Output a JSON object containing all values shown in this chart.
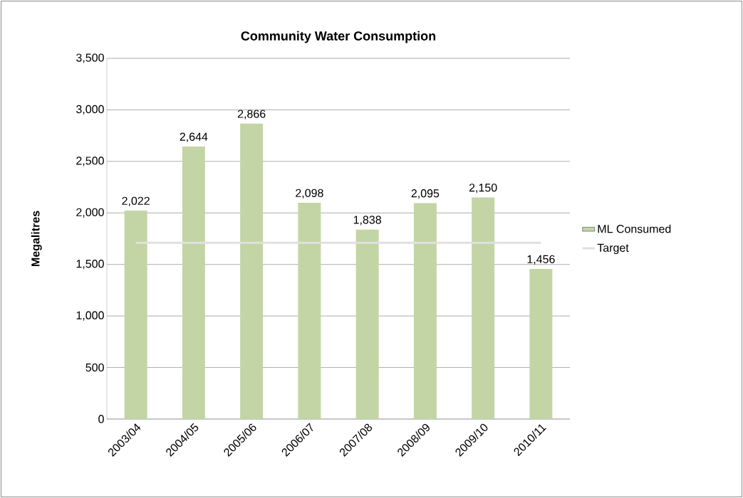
{
  "chart_data": {
    "type": "bar",
    "title": "Community Water Consumption",
    "ylabel": "Megalitres",
    "categories": [
      "2003/04",
      "2004/05",
      "2005/06",
      "2006/07",
      "2007/08",
      "2008/09",
      "2009/10",
      "2010/11"
    ],
    "series": [
      {
        "name": "ML Consumed",
        "color": "#c3d5a5",
        "values": [
          2022,
          2644,
          2866,
          2098,
          1838,
          2095,
          2150,
          1456
        ],
        "value_labels": [
          "2,022",
          "2,644",
          "2,866",
          "2,098",
          "1,838",
          "2,095",
          "2,150",
          "1,456"
        ]
      },
      {
        "name": "Target",
        "type": "line",
        "color": "#e0e0e0",
        "values": [
          1710,
          1710,
          1710,
          1710,
          1710,
          1710,
          1710,
          1710
        ]
      }
    ],
    "ylim": [
      0,
      3500
    ],
    "yticks": [
      0,
      500,
      {
        "value": 1000,
        "label": "1,000"
      },
      {
        "value": 1500,
        "label": "1,500"
      },
      {
        "value": 2000,
        "label": "2,000"
      },
      {
        "value": 2500,
        "label": "2,500"
      },
      {
        "value": 3000,
        "label": "3,000"
      },
      {
        "value": 3500,
        "label": "3,500"
      }
    ],
    "grid": "y",
    "legend": "right"
  }
}
